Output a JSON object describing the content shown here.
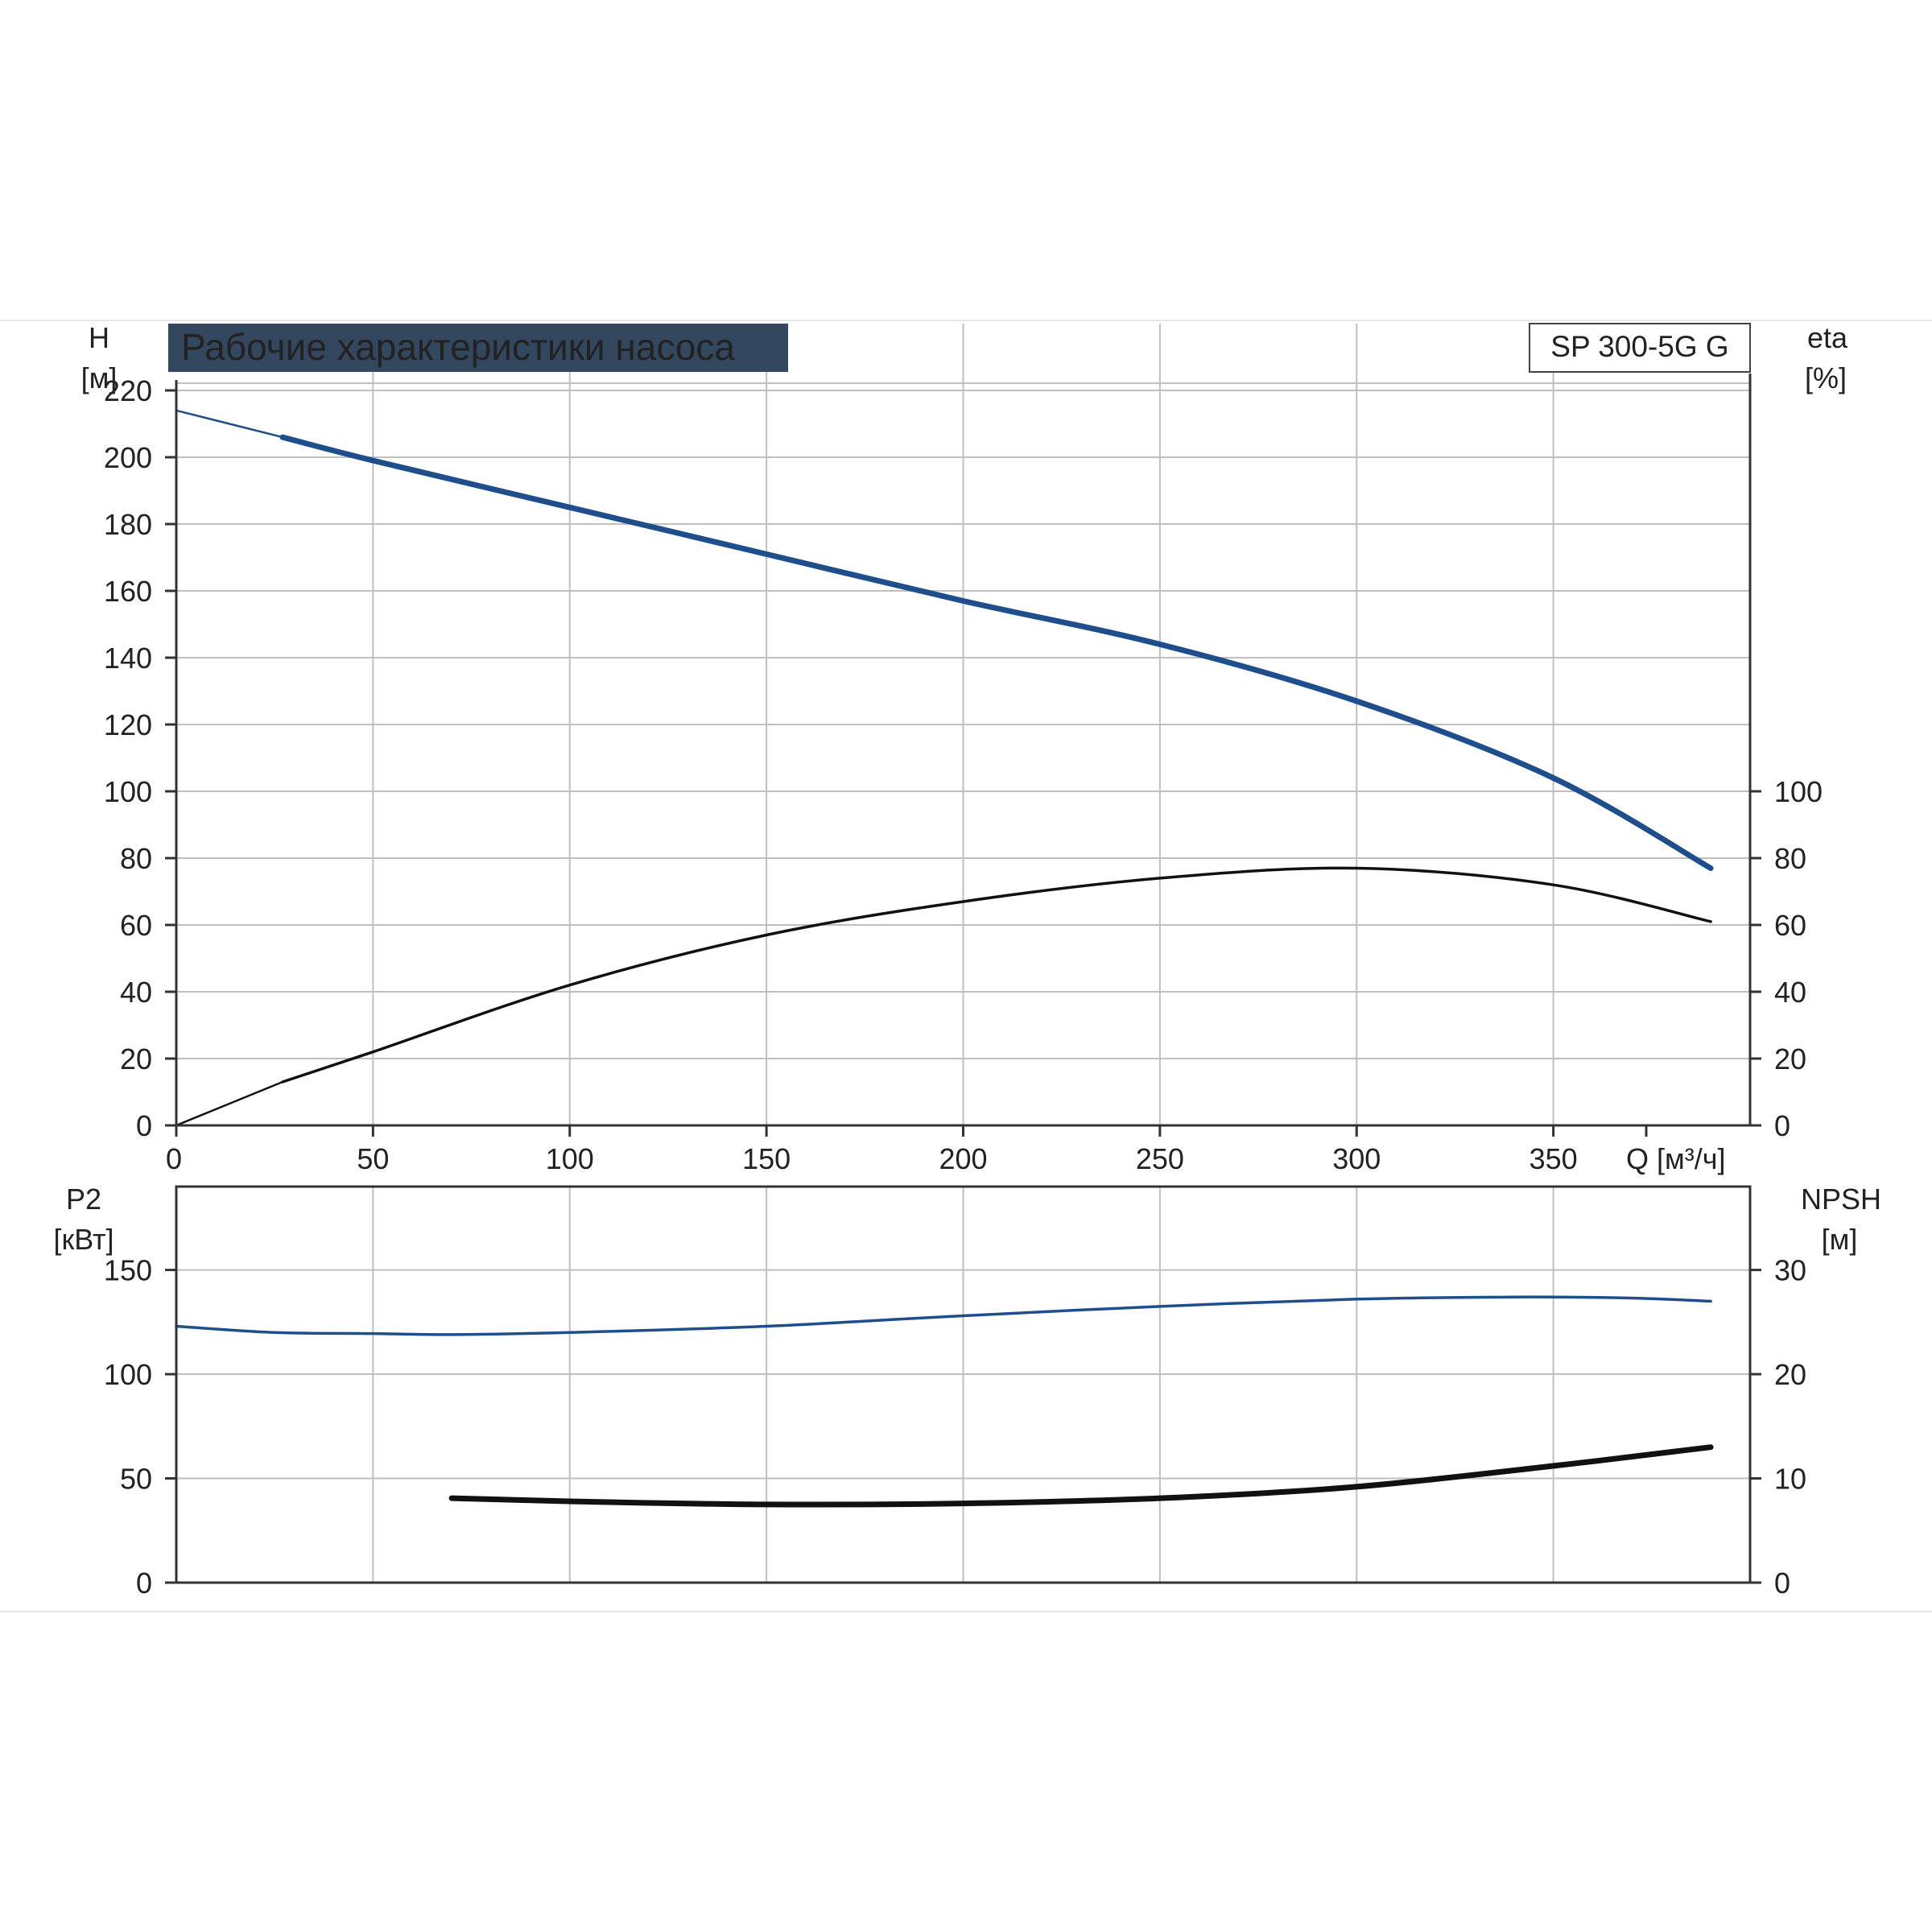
{
  "title": "Рабочие характеристики насоса",
  "model": "SP 300-5G G",
  "colors": {
    "title_bg": "#33475f",
    "head_curve": "#1f4e8c",
    "power_curve": "#1f4e8c",
    "efficiency_curve": "#111111",
    "npsh_curve": "#111111",
    "grid": "#bfbfbf",
    "axis": "#333333"
  },
  "chart_data": [
    {
      "type": "line",
      "name": "head_efficiency",
      "title": "Рабочие характеристики насоса",
      "xlabel": "Q [м³/ч]",
      "xlim": [
        0,
        400
      ],
      "x_ticks": [
        0,
        50,
        100,
        150,
        200,
        250,
        300,
        350
      ],
      "ylabel_left": [
        "H",
        "[м]"
      ],
      "ylim_left": [
        0,
        240
      ],
      "y_ticks_left": [
        0,
        20,
        40,
        60,
        80,
        100,
        120,
        140,
        160,
        180,
        200,
        220
      ],
      "ylabel_right": [
        "eta",
        "[%]"
      ],
      "ylim_right": [
        0,
        240
      ],
      "y_ticks_right": [
        0,
        20,
        40,
        60,
        80,
        100
      ],
      "grid": true,
      "series": [
        {
          "key": "head",
          "axis": "left",
          "color": "#1f4e8c",
          "extrapolated": [
            [
              0,
              214
            ],
            [
              27,
              206
            ]
          ],
          "points": [
            [
              27,
              206
            ],
            [
              50,
              199
            ],
            [
              100,
              185
            ],
            [
              150,
              171
            ],
            [
              200,
              157
            ],
            [
              250,
              144
            ],
            [
              300,
              127
            ],
            [
              350,
              104
            ],
            [
              390,
              77
            ]
          ]
        },
        {
          "key": "efficiency",
          "axis": "right",
          "color": "#111111",
          "extrapolated": [
            [
              0,
              0
            ],
            [
              27,
              13
            ]
          ],
          "points": [
            [
              27,
              13
            ],
            [
              50,
              22
            ],
            [
              100,
              42
            ],
            [
              150,
              57
            ],
            [
              200,
              67
            ],
            [
              250,
              74
            ],
            [
              300,
              77
            ],
            [
              350,
              72
            ],
            [
              390,
              61
            ]
          ]
        }
      ]
    },
    {
      "type": "line",
      "name": "power_npsh",
      "xlim": [
        0,
        400
      ],
      "ylabel_left": [
        "P2",
        "[кВт]"
      ],
      "ylim_left": [
        0,
        190
      ],
      "y_ticks_left": [
        0,
        50,
        100,
        150
      ],
      "ylabel_right": [
        "NPSH",
        "[м]"
      ],
      "ylim_right": [
        0,
        38
      ],
      "y_ticks_right": [
        0,
        10,
        20,
        30
      ],
      "grid": true,
      "series": [
        {
          "key": "power",
          "axis": "left",
          "color": "#1f4e8c",
          "points": [
            [
              0,
              123
            ],
            [
              25,
              120
            ],
            [
              50,
              119.5
            ],
            [
              70,
              119
            ],
            [
              100,
              120
            ],
            [
              150,
              123
            ],
            [
              200,
              128
            ],
            [
              250,
              132.5
            ],
            [
              300,
              136
            ],
            [
              340,
              137
            ],
            [
              370,
              136.5
            ],
            [
              390,
              135
            ]
          ]
        },
        {
          "key": "npsh",
          "axis": "right",
          "color": "#111111",
          "points": [
            [
              70,
              8.1
            ],
            [
              100,
              7.8
            ],
            [
              150,
              7.5
            ],
            [
              200,
              7.6
            ],
            [
              250,
              8.1
            ],
            [
              300,
              9.2
            ],
            [
              350,
              11.2
            ],
            [
              390,
              13.0
            ]
          ]
        }
      ]
    }
  ]
}
